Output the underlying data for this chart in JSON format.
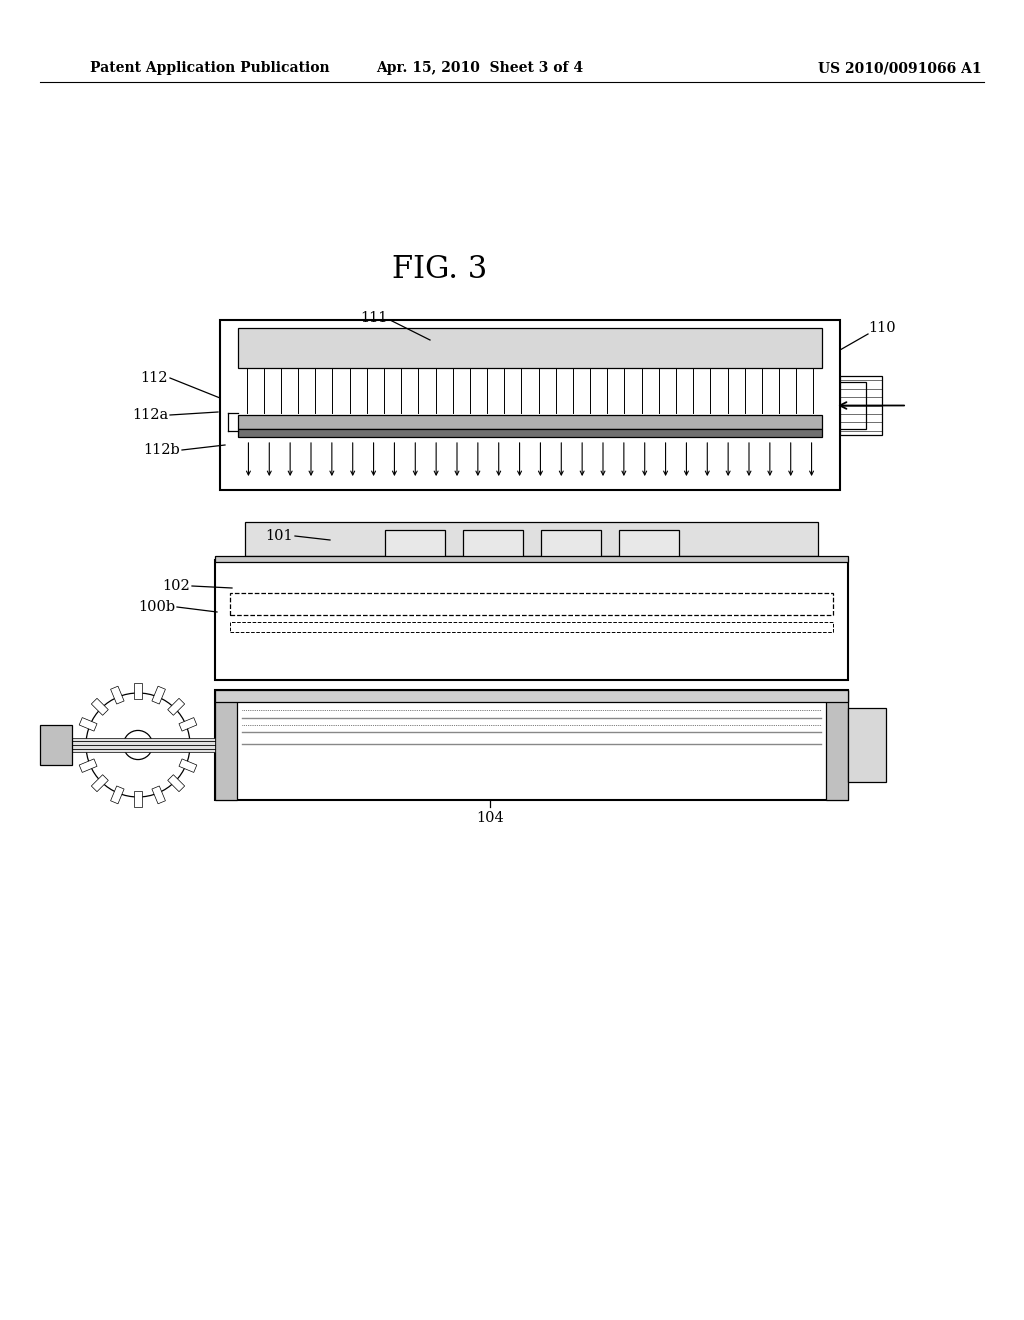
{
  "bg_color": "#ffffff",
  "text_color": "#000000",
  "header_left": "Patent Application Publication",
  "header_mid": "Apr. 15, 2010  Sheet 3 of 4",
  "header_right": "US 2010/0091066 A1",
  "fig_label": "FIG. 3"
}
